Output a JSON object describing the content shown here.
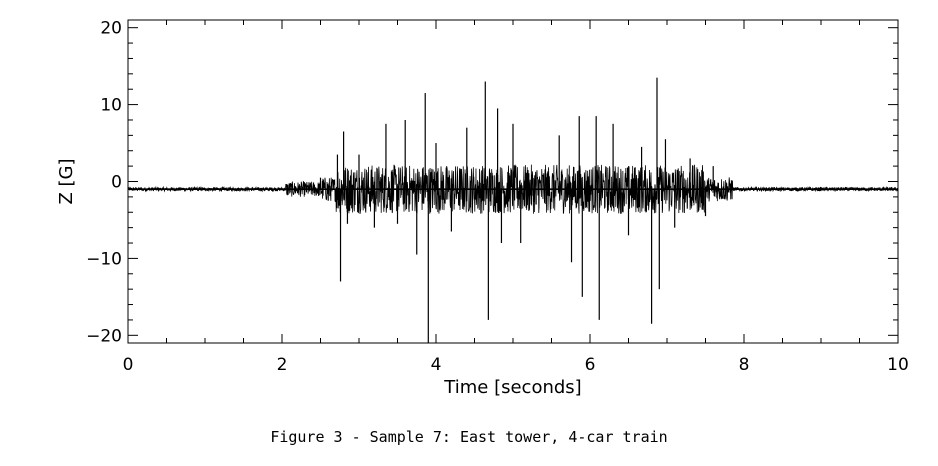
{
  "caption": "Figure 3 - Sample 7: East tower, 4-car train",
  "chart_data": {
    "type": "line",
    "title": "",
    "xlabel": "Time [seconds]",
    "ylabel": "Z [G]",
    "xlim": [
      0,
      10
    ],
    "ylim": [
      -21,
      21
    ],
    "x_ticks": [
      0,
      2,
      4,
      6,
      8,
      10
    ],
    "x_tick_labels": [
      "0",
      "2",
      "4",
      "6",
      "8",
      "10"
    ],
    "y_ticks": [
      -20,
      -10,
      0,
      10,
      20
    ],
    "y_tick_labels": [
      "−20",
      "−10",
      "0",
      "10",
      "20"
    ],
    "grid": false,
    "legend": "none",
    "line_color": "#000000",
    "series": [
      {
        "baseline": -1,
        "x": [
          0,
          0.5,
          1.0,
          1.5,
          2.0,
          2.1,
          2.3,
          2.5,
          2.6,
          2.72,
          2.76,
          2.8,
          2.85,
          3.0,
          3.2,
          3.35,
          3.5,
          3.6,
          3.75,
          3.86,
          3.9,
          4.0,
          4.2,
          4.4,
          4.64,
          4.68,
          4.8,
          4.85,
          5.0,
          5.1,
          5.3,
          5.6,
          5.76,
          5.86,
          5.9,
          6.08,
          6.12,
          6.3,
          6.5,
          6.67,
          6.8,
          6.87,
          6.9,
          6.98,
          7.1,
          7.3,
          7.5,
          7.6,
          7.75,
          8.0,
          8.5,
          9.0,
          10.0
        ],
        "y": [
          -1,
          -1,
          -1,
          -1,
          -1,
          -0.5,
          -1.5,
          0.5,
          -2.5,
          3.5,
          -13,
          6.5,
          -5.5,
          3.5,
          -6,
          7.5,
          -5.5,
          8,
          -9.5,
          11.5,
          -21,
          5,
          -6.5,
          7,
          13,
          -18,
          9.5,
          -8,
          7.5,
          -8,
          -3,
          6,
          -10.5,
          8.5,
          -15,
          8.5,
          -18,
          7.5,
          -7,
          4.5,
          -18.5,
          13.5,
          -14,
          5.5,
          -6,
          3,
          -4.5,
          2,
          -1.5,
          -1,
          -1,
          -1,
          -1
        ]
      }
    ]
  }
}
